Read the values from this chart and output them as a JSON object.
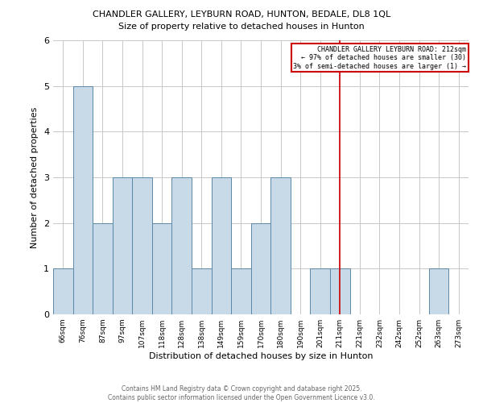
{
  "title1": "CHANDLER GALLERY, LEYBURN ROAD, HUNTON, BEDALE, DL8 1QL",
  "title2": "Size of property relative to detached houses in Hunton",
  "xlabel": "Distribution of detached houses by size in Hunton",
  "ylabel": "Number of detached properties",
  "bar_labels": [
    "66sqm",
    "76sqm",
    "87sqm",
    "97sqm",
    "107sqm",
    "118sqm",
    "128sqm",
    "138sqm",
    "149sqm",
    "159sqm",
    "170sqm",
    "180sqm",
    "190sqm",
    "201sqm",
    "211sqm",
    "221sqm",
    "232sqm",
    "242sqm",
    "252sqm",
    "263sqm",
    "273sqm"
  ],
  "bar_heights": [
    1,
    5,
    2,
    3,
    3,
    2,
    3,
    1,
    3,
    1,
    2,
    3,
    0,
    1,
    1,
    0,
    0,
    0,
    0,
    1,
    0
  ],
  "bar_color": "#c8d9e8",
  "bar_edge_color": "#5b87a8",
  "vline_x": 14,
  "vline_color": "#cc0000",
  "annotation_title": "CHANDLER GALLERY LEYBURN ROAD: 212sqm",
  "annotation_line2": "← 97% of detached houses are smaller (30)",
  "annotation_line3": "3% of semi-detached houses are larger (1) →",
  "annotation_box_color": "#cc0000",
  "ylim": [
    0,
    6
  ],
  "yticks": [
    0,
    1,
    2,
    3,
    4,
    5,
    6
  ],
  "grid_color": "#c8c8c8",
  "footer_line1": "Contains HM Land Registry data © Crown copyright and database right 2025.",
  "footer_line2": "Contains public sector information licensed under the Open Government Licence v3.0.",
  "bg_color": "#ffffff"
}
